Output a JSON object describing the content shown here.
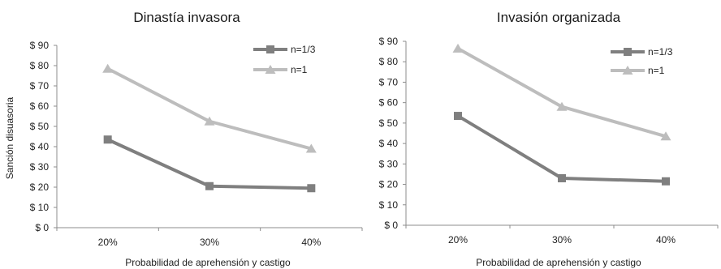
{
  "chart_data": [
    {
      "type": "line",
      "title": "Dinastía invasora",
      "xlabel": "Probabilidad de aprehensión y castigo",
      "ylabel": "Sanción disuasoria",
      "categories": [
        "20%",
        "30%",
        "40%"
      ],
      "yticks": [
        "$ 0",
        "$ 10",
        "$ 20",
        "$ 30",
        "$ 40",
        "$ 50",
        "$ 60",
        "$ 70",
        "$ 80",
        "$ 90"
      ],
      "ylim": [
        0,
        90
      ],
      "legend_position": "top-right",
      "grid": false,
      "series": [
        {
          "name": "n=1/3",
          "values": [
            43.5,
            20.5,
            19.5
          ],
          "color": "#7f7f7f",
          "marker": "square"
        },
        {
          "name": "n=1",
          "values": [
            78.5,
            52.5,
            39.0
          ],
          "color": "#bdbdbd",
          "marker": "triangle"
        }
      ]
    },
    {
      "type": "line",
      "title": "Invasión organizada",
      "xlabel": "Probabilidad de aprehensión y castigo",
      "ylabel": "",
      "categories": [
        "20%",
        "30%",
        "40%"
      ],
      "yticks": [
        "$ 0",
        "$ 10",
        "$ 20",
        "$ 30",
        "$ 40",
        "$ 50",
        "$ 60",
        "$ 70",
        "$ 80",
        "$ 90"
      ],
      "ylim": [
        0,
        90
      ],
      "legend_position": "top-right",
      "grid": false,
      "series": [
        {
          "name": "n=1/3",
          "values": [
            53.5,
            23.0,
            21.5
          ],
          "color": "#7f7f7f",
          "marker": "square"
        },
        {
          "name": "n=1",
          "values": [
            86.5,
            58.0,
            43.5
          ],
          "color": "#bdbdbd",
          "marker": "triangle"
        }
      ]
    }
  ]
}
